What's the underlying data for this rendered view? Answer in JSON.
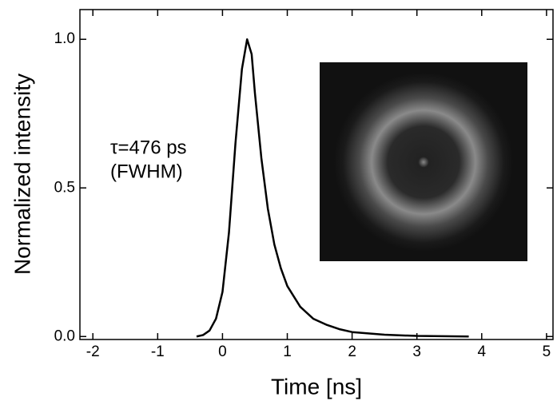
{
  "chart_data": {
    "type": "line",
    "xlabel": "Time [ns]",
    "ylabel": "Normalized intensity",
    "annotations": [
      "τ=476 ps",
      "(FWHM)"
    ],
    "x": [
      -0.4,
      -0.3,
      -0.2,
      -0.1,
      0,
      0.1,
      0.2,
      0.3,
      0.38,
      0.45,
      0.5,
      0.6,
      0.7,
      0.8,
      0.9,
      1.0,
      1.2,
      1.4,
      1.6,
      1.8,
      2.0,
      2.5,
      3.0,
      3.8
    ],
    "series": [
      {
        "color": "#000000",
        "values": [
          0,
          0.005,
          0.02,
          0.06,
          0.15,
          0.35,
          0.65,
          0.9,
          1.0,
          0.95,
          0.82,
          0.6,
          0.43,
          0.31,
          0.23,
          0.17,
          0.1,
          0.06,
          0.04,
          0.025,
          0.015,
          0.006,
          0.002,
          0
        ]
      }
    ],
    "xlim": [
      -2.2,
      5.1
    ],
    "ylim": [
      -0.01,
      1.1
    ],
    "xticks": [
      -2,
      -1,
      0,
      1,
      2,
      3,
      4,
      5
    ],
    "yticks": [
      {
        "value": 0,
        "label": "0.0"
      },
      {
        "value": 0.5,
        "label": "0.5"
      },
      {
        "value": 1,
        "label": "1.0"
      }
    ]
  }
}
